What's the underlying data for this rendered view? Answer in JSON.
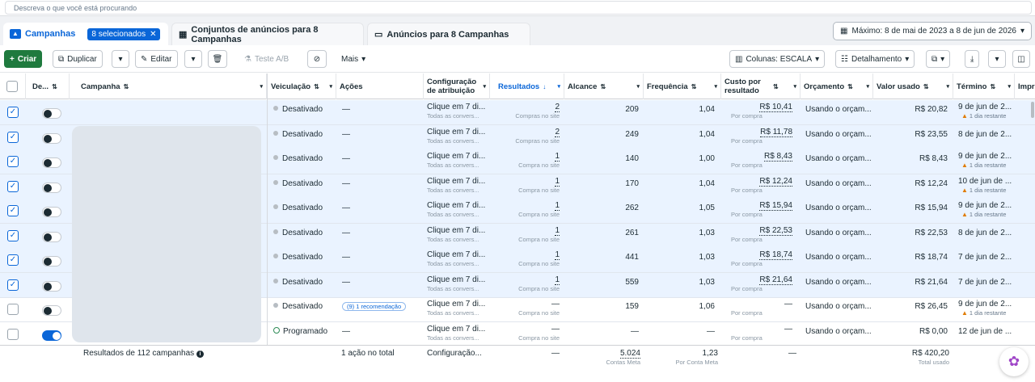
{
  "search": {
    "placeholder": "Descreva o que você está procurando"
  },
  "tabs": {
    "campaigns": {
      "label": "Campanhas",
      "badge": "8 selecionados"
    },
    "adsets": {
      "label": "Conjuntos de anúncios para 8 Campanhas"
    },
    "ads": {
      "label": "Anúncios para 8 Campanhas"
    }
  },
  "date_range": "Máximo: 8 de mai de 2023 a 8 de jun de 2026",
  "toolbar": {
    "create": "Criar",
    "duplicate": "Duplicar",
    "edit": "Editar",
    "ab_test": "Teste A/B",
    "more": "Mais",
    "columns": "Colunas: ESCALA",
    "breakdown": "Detalhamento"
  },
  "columns": {
    "delivery_toggle": "De...",
    "campaign": "Campanha",
    "delivery": "Veiculação",
    "actions": "Ações",
    "attribution": "Configuração de atribuição",
    "results": "Resultados",
    "reach": "Alcance",
    "frequency": "Frequência",
    "cost_per_result": "Custo por resultado",
    "budget": "Orçamento",
    "amount_spent": "Valor usado",
    "end": "Término",
    "impr": "Impr"
  },
  "rows": [
    {
      "selected": true,
      "on": false,
      "status": "Desativado",
      "action": "—",
      "attr": "Clique em 7 di...",
      "attr_sub": "Todas as convers...",
      "results": "2",
      "results_sub": "Compras no site",
      "reach": "209",
      "freq": "1,04",
      "cpr": "R$ 10,41",
      "cpr_sub": "Por compra",
      "budget": "Usando o orçam...",
      "spent": "R$ 20,82",
      "end": "9 de jun de 2...",
      "end_sub": "1 dia restante"
    },
    {
      "selected": true,
      "on": false,
      "status": "Desativado",
      "action": "—",
      "attr": "Clique em 7 di...",
      "attr_sub": "Todas as convers...",
      "results": "2",
      "results_sub": "Compras no site",
      "reach": "249",
      "freq": "1,04",
      "cpr": "R$ 11,78",
      "cpr_sub": "Por compra",
      "budget": "Usando o orçam...",
      "spent": "R$ 23,55",
      "end": "8 de jun de 2...",
      "end_sub": ""
    },
    {
      "selected": true,
      "on": false,
      "status": "Desativado",
      "action": "—",
      "attr": "Clique em 7 di...",
      "attr_sub": "Todas as convers...",
      "results": "1",
      "results_sub": "Compra no site",
      "reach": "140",
      "freq": "1,00",
      "cpr": "R$ 8,43",
      "cpr_sub": "Por compra",
      "budget": "Usando o orçam...",
      "spent": "R$ 8,43",
      "end": "9 de jun de 2...",
      "end_sub": "1 dia restante"
    },
    {
      "selected": true,
      "on": false,
      "status": "Desativado",
      "action": "—",
      "attr": "Clique em 7 di...",
      "attr_sub": "Todas as convers...",
      "results": "1",
      "results_sub": "Compra no site",
      "reach": "170",
      "freq": "1,04",
      "cpr": "R$ 12,24",
      "cpr_sub": "Por compra",
      "budget": "Usando o orçam...",
      "spent": "R$ 12,24",
      "end": "10 de jun de ...",
      "end_sub": "1 dia restante"
    },
    {
      "selected": true,
      "on": false,
      "status": "Desativado",
      "action": "—",
      "attr": "Clique em 7 di...",
      "attr_sub": "Todas as convers...",
      "results": "1",
      "results_sub": "Compra no site",
      "reach": "262",
      "freq": "1,05",
      "cpr": "R$ 15,94",
      "cpr_sub": "Por compra",
      "budget": "Usando o orçam...",
      "spent": "R$ 15,94",
      "end": "9 de jun de 2...",
      "end_sub": "1 dia restante"
    },
    {
      "selected": true,
      "on": false,
      "status": "Desativado",
      "action": "—",
      "attr": "Clique em 7 di...",
      "attr_sub": "Todas as convers...",
      "results": "1",
      "results_sub": "Compra no site",
      "reach": "261",
      "freq": "1,03",
      "cpr": "R$ 22,53",
      "cpr_sub": "Por compra",
      "budget": "Usando o orçam...",
      "spent": "R$ 22,53",
      "end": "8 de jun de 2...",
      "end_sub": ""
    },
    {
      "selected": true,
      "on": false,
      "status": "Desativado",
      "action": "—",
      "attr": "Clique em 7 di...",
      "attr_sub": "Todas as convers...",
      "results": "1",
      "results_sub": "Compra no site",
      "reach": "441",
      "freq": "1,03",
      "cpr": "R$ 18,74",
      "cpr_sub": "Por compra",
      "budget": "Usando o orçam...",
      "spent": "R$ 18,74",
      "end": "7 de jun de 2...",
      "end_sub": ""
    },
    {
      "selected": true,
      "on": false,
      "status": "Desativado",
      "action": "—",
      "attr": "Clique em 7 di...",
      "attr_sub": "Todas as convers...",
      "results": "1",
      "results_sub": "Compra no site",
      "reach": "559",
      "freq": "1,03",
      "cpr": "R$ 21,64",
      "cpr_sub": "Por compra",
      "budget": "Usando o orçam...",
      "spent": "R$ 21,64",
      "end": "7 de jun de 2...",
      "end_sub": ""
    },
    {
      "selected": false,
      "on": false,
      "status": "Desativado",
      "action": "(9) 1 recomendação",
      "attr": "Clique em 7 di...",
      "attr_sub": "Todas as convers...",
      "results": "—",
      "results_sub": "Compra no site",
      "reach": "159",
      "freq": "1,06",
      "cpr": "—",
      "cpr_sub": "Por compra",
      "budget": "Usando o orçam...",
      "spent": "R$ 26,45",
      "end": "9 de jun de 2...",
      "end_sub": "1 dia restante"
    },
    {
      "selected": false,
      "on": true,
      "status": "Programado",
      "action": "—",
      "attr": "Clique em 7 di...",
      "attr_sub": "Todas as convers...",
      "results": "—",
      "results_sub": "Compra no site",
      "reach": "—",
      "freq": "—",
      "cpr": "—",
      "cpr_sub": "Por compra",
      "budget": "Usando o orçam...",
      "spent": "R$ 0,00",
      "end": "12 de jun de ...",
      "end_sub": ""
    }
  ],
  "footer": {
    "summary": "Resultados de 112 campanhas",
    "actions": "1 ação no total",
    "attr": "Configuração...",
    "results": "—",
    "reach": "5.024",
    "reach_sub": "Contas Meta",
    "freq": "1,23",
    "freq_sub": "Por Conta Meta",
    "cpr": "—",
    "spent": "R$ 420,20",
    "spent_sub": "Total usado"
  }
}
